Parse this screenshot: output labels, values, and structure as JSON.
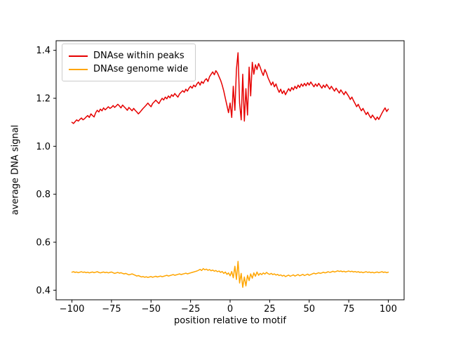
{
  "figure": {
    "background": "#ffffff"
  },
  "chart_data": {
    "type": "line",
    "title": "",
    "xlabel": "position relative to motif",
    "ylabel": "average DNA signal",
    "xlim": [
      -110,
      110
    ],
    "ylim": [
      0.36,
      1.44
    ],
    "grid": false,
    "legend_position": "upper left",
    "x_tick_values": [
      -100,
      -75,
      -50,
      -25,
      0,
      25,
      50,
      75,
      100
    ],
    "x_tick_labels": [
      "−100",
      "−75",
      "−50",
      "−25",
      "0",
      "25",
      "50",
      "75",
      "100"
    ],
    "y_tick_values": [
      0.4,
      0.6,
      0.8,
      1.0,
      1.2,
      1.4
    ],
    "y_tick_labels": [
      "0.4",
      "0.6",
      "0.8",
      "1.0",
      "1.2",
      "1.4"
    ],
    "x_start": -100,
    "x_step": 1,
    "series": [
      {
        "name": "DNAse within peaks",
        "color": "#e60000",
        "values": [
          1.1,
          1.095,
          1.103,
          1.11,
          1.105,
          1.112,
          1.118,
          1.11,
          1.115,
          1.122,
          1.128,
          1.12,
          1.135,
          1.128,
          1.122,
          1.14,
          1.15,
          1.143,
          1.155,
          1.148,
          1.16,
          1.152,
          1.158,
          1.165,
          1.158,
          1.162,
          1.17,
          1.162,
          1.168,
          1.175,
          1.168,
          1.16,
          1.172,
          1.165,
          1.158,
          1.15,
          1.162,
          1.155,
          1.148,
          1.158,
          1.15,
          1.143,
          1.135,
          1.142,
          1.15,
          1.158,
          1.165,
          1.172,
          1.18,
          1.172,
          1.165,
          1.178,
          1.185,
          1.192,
          1.185,
          1.178,
          1.19,
          1.2,
          1.193,
          1.205,
          1.198,
          1.21,
          1.202,
          1.215,
          1.208,
          1.22,
          1.212,
          1.205,
          1.218,
          1.225,
          1.232,
          1.225,
          1.238,
          1.23,
          1.242,
          1.25,
          1.242,
          1.255,
          1.248,
          1.26,
          1.268,
          1.255,
          1.27,
          1.262,
          1.275,
          1.282,
          1.27,
          1.29,
          1.3,
          1.31,
          1.298,
          1.315,
          1.305,
          1.29,
          1.275,
          1.255,
          1.23,
          1.2,
          1.17,
          1.14,
          1.18,
          1.12,
          1.25,
          1.15,
          1.32,
          1.39,
          1.18,
          1.11,
          1.3,
          1.105,
          1.24,
          1.13,
          1.33,
          1.21,
          1.35,
          1.3,
          1.34,
          1.32,
          1.345,
          1.33,
          1.31,
          1.295,
          1.32,
          1.305,
          1.285,
          1.27,
          1.255,
          1.268,
          1.248,
          1.26,
          1.24,
          1.225,
          1.238,
          1.22,
          1.232,
          1.215,
          1.228,
          1.24,
          1.23,
          1.245,
          1.235,
          1.25,
          1.24,
          1.255,
          1.245,
          1.26,
          1.25,
          1.262,
          1.252,
          1.265,
          1.255,
          1.268,
          1.258,
          1.248,
          1.26,
          1.25,
          1.262,
          1.252,
          1.242,
          1.255,
          1.245,
          1.258,
          1.248,
          1.238,
          1.25,
          1.24,
          1.23,
          1.242,
          1.232,
          1.222,
          1.235,
          1.225,
          1.215,
          1.228,
          1.218,
          1.208,
          1.195,
          1.205,
          1.19,
          1.178,
          1.165,
          1.175,
          1.16,
          1.148,
          1.158,
          1.145,
          1.132,
          1.142,
          1.128,
          1.118,
          1.13,
          1.12,
          1.11,
          1.122,
          1.112,
          1.125,
          1.138,
          1.15,
          1.16,
          1.145,
          1.155
        ]
      },
      {
        "name": "DNAse genome wide",
        "color": "#ffa500",
        "values": [
          0.475,
          0.477,
          0.474,
          0.476,
          0.473,
          0.475,
          0.477,
          0.474,
          0.476,
          0.473,
          0.475,
          0.472,
          0.474,
          0.476,
          0.473,
          0.475,
          0.477,
          0.474,
          0.472,
          0.474,
          0.476,
          0.473,
          0.475,
          0.472,
          0.474,
          0.476,
          0.473,
          0.47,
          0.472,
          0.474,
          0.471,
          0.473,
          0.47,
          0.468,
          0.47,
          0.467,
          0.464,
          0.466,
          0.468,
          0.465,
          0.462,
          0.459,
          0.461,
          0.458,
          0.455,
          0.457,
          0.454,
          0.456,
          0.453,
          0.455,
          0.457,
          0.454,
          0.456,
          0.458,
          0.455,
          0.457,
          0.459,
          0.456,
          0.458,
          0.46,
          0.462,
          0.459,
          0.461,
          0.463,
          0.465,
          0.462,
          0.464,
          0.466,
          0.468,
          0.465,
          0.467,
          0.469,
          0.471,
          0.468,
          0.47,
          0.472,
          0.474,
          0.476,
          0.478,
          0.48,
          0.483,
          0.487,
          0.482,
          0.49,
          0.485,
          0.488,
          0.483,
          0.486,
          0.481,
          0.484,
          0.479,
          0.482,
          0.477,
          0.48,
          0.474,
          0.478,
          0.47,
          0.476,
          0.466,
          0.472,
          0.46,
          0.478,
          0.452,
          0.5,
          0.445,
          0.52,
          0.43,
          0.47,
          0.412,
          0.455,
          0.418,
          0.462,
          0.44,
          0.468,
          0.45,
          0.472,
          0.458,
          0.476,
          0.462,
          0.47,
          0.465,
          0.472,
          0.467,
          0.474,
          0.469,
          0.466,
          0.47,
          0.465,
          0.468,
          0.463,
          0.466,
          0.461,
          0.464,
          0.459,
          0.462,
          0.457,
          0.46,
          0.463,
          0.458,
          0.461,
          0.464,
          0.459,
          0.462,
          0.465,
          0.46,
          0.463,
          0.466,
          0.461,
          0.464,
          0.467,
          0.462,
          0.465,
          0.468,
          0.471,
          0.468,
          0.47,
          0.473,
          0.47,
          0.472,
          0.475,
          0.472,
          0.474,
          0.477,
          0.474,
          0.476,
          0.479,
          0.476,
          0.478,
          0.481,
          0.478,
          0.48,
          0.477,
          0.479,
          0.476,
          0.478,
          0.48,
          0.477,
          0.479,
          0.476,
          0.478,
          0.475,
          0.477,
          0.474,
          0.476,
          0.473,
          0.475,
          0.477,
          0.474,
          0.476,
          0.473,
          0.475,
          0.472,
          0.474,
          0.476,
          0.473,
          0.475,
          0.477,
          0.474,
          0.476,
          0.473,
          0.475
        ]
      }
    ]
  }
}
